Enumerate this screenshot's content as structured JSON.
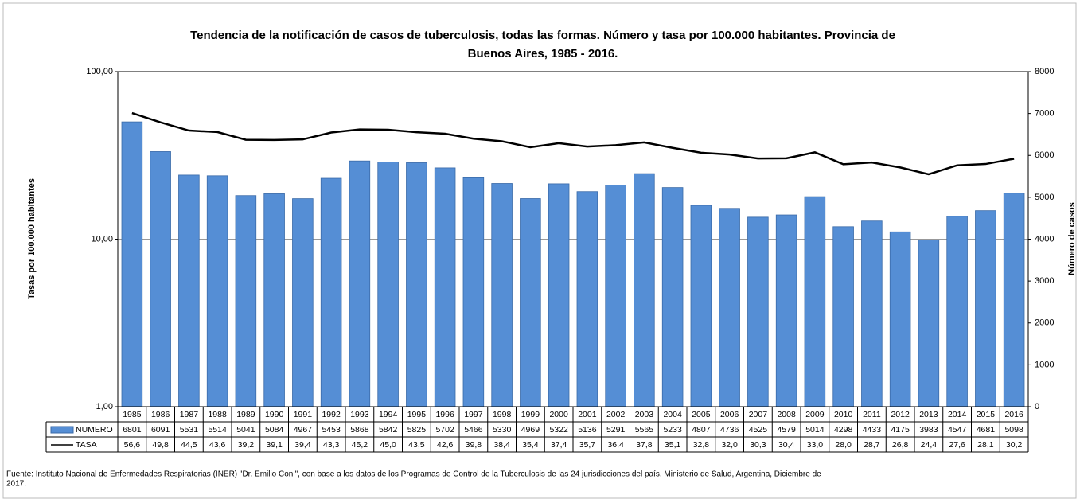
{
  "chart_data": {
    "type": "bar",
    "title": [
      "Tendencia de la notificación de casos de tuberculosis, todas las formas. Número y tasa por 100.000 habitantes. Provincia de",
      "Buenos Aires, 1985 - 2016."
    ],
    "ylabel": "Tasas por 100.000 habitantes",
    "y2label": "Número de casos",
    "source": [
      "Fuente: Instituto Nacional de Enfermedades Respiratorias (INER) \"Dr. Emilio Coni\", con base a los datos de los Programas de Control de la Tuberculosis de las 24 jurisdicciones del país. Ministerio de Salud, Argentina, Diciembre de",
      "2017."
    ],
    "categories": [
      "1985",
      "1986",
      "1987",
      "1988",
      "1989",
      "1990",
      "1991",
      "1992",
      "1993",
      "1994",
      "1995",
      "1996",
      "1997",
      "1998",
      "1999",
      "2000",
      "2001",
      "2002",
      "2003",
      "2004",
      "2005",
      "2006",
      "2007",
      "2008",
      "2009",
      "2010",
      "2011",
      "2012",
      "2013",
      "2014",
      "2015",
      "2016"
    ],
    "series": [
      {
        "name": "NUMERO",
        "type": "bar",
        "axis": "y2",
        "color": "#558ed5",
        "values": [
          6801,
          6091,
          5531,
          5514,
          5041,
          5084,
          4967,
          5453,
          5868,
          5842,
          5825,
          5702,
          5466,
          5330,
          4969,
          5322,
          5136,
          5291,
          5565,
          5233,
          4807,
          4736,
          4525,
          4579,
          5014,
          4298,
          4433,
          4175,
          3983,
          4547,
          4681,
          5098
        ]
      },
      {
        "name": "TASA",
        "type": "line",
        "color": "#000000",
        "values": [
          56.6,
          49.8,
          44.5,
          43.6,
          39.2,
          39.1,
          39.4,
          43.3,
          45.2,
          45.0,
          43.5,
          42.6,
          39.8,
          38.4,
          35.4,
          37.4,
          35.7,
          36.4,
          37.8,
          35.1,
          32.8,
          32.0,
          30.3,
          30.4,
          33.0,
          28.0,
          28.7,
          26.8,
          24.4,
          27.6,
          28.1,
          30.2
        ],
        "value_labels": [
          "56,6",
          "49,8",
          "44,5",
          "43,6",
          "39,2",
          "39,1",
          "39,4",
          "43,3",
          "45,2",
          "45,0",
          "43,5",
          "42,6",
          "39,8",
          "38,4",
          "35,4",
          "37,4",
          "35,7",
          "36,4",
          "37,8",
          "35,1",
          "32,8",
          "32,0",
          "30,3",
          "30,4",
          "33,0",
          "28,0",
          "28,7",
          "26,8",
          "24,4",
          "27,6",
          "28,1",
          "30,2"
        ]
      }
    ],
    "ylog": true,
    "ylim": [
      1,
      100
    ],
    "yticks": [
      {
        "value": 1,
        "label": "1,00"
      },
      {
        "value": 10,
        "label": "10,00"
      },
      {
        "value": 100,
        "label": "100,00"
      }
    ],
    "y2lim": [
      0,
      8000
    ],
    "y2ticks": [
      0,
      1000,
      2000,
      3000,
      4000,
      5000,
      6000,
      7000,
      8000
    ],
    "grid": true
  }
}
